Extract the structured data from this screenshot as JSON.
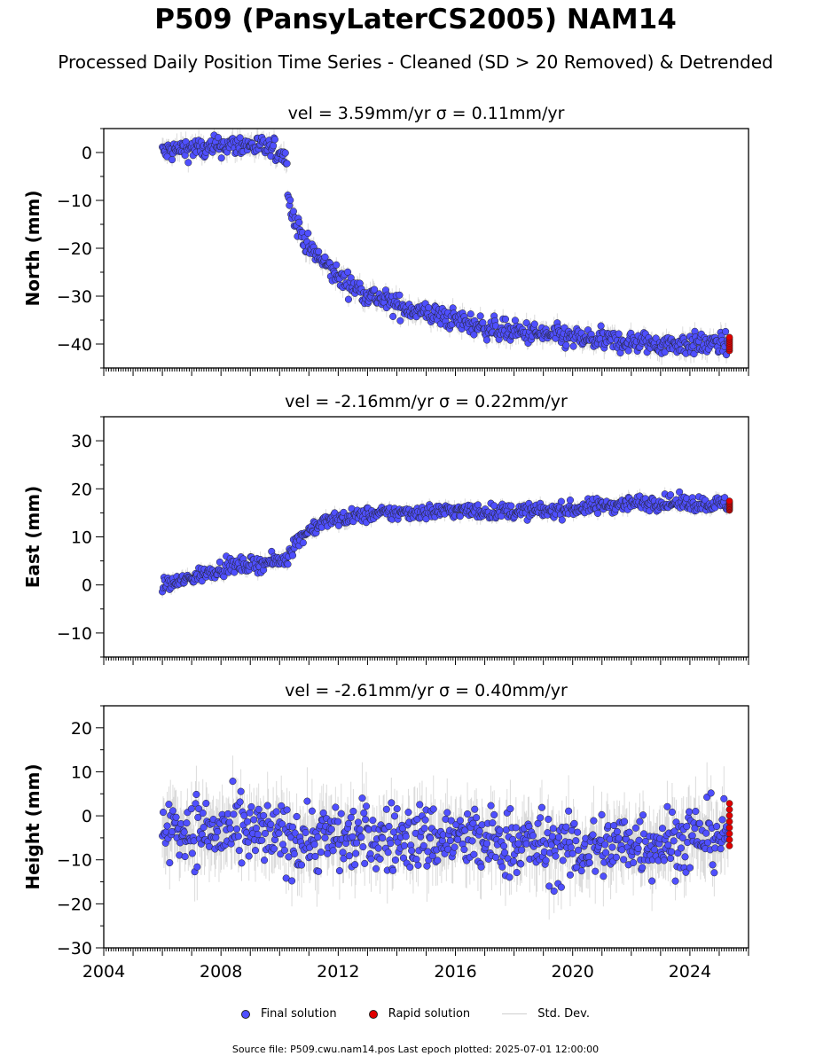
{
  "title": "P509 (PansyLaterCS2005) NAM14",
  "subtitle": "Processed Daily Position Time Series - Cleaned (SD > 20 Removed) & Detrended",
  "legend": {
    "final": "Final solution",
    "rapid": "Rapid solution",
    "std": "Std. Dev."
  },
  "source_text": "Source file: P509.cwu.nam14.pos  Last epoch plotted: 2025-07-01 12:00:00",
  "colors": {
    "final": "#4f4fff",
    "rapid": "#e00000",
    "std": "#9a9a9a"
  },
  "chart_data": [
    {
      "type": "scatter",
      "title": "vel = 3.59mm/yr   σ = 0.11mm/yr",
      "ylabel": "North (mm)",
      "xlim": [
        2004.0,
        2026.0
      ],
      "ylim": [
        -45,
        5
      ],
      "yticks": [
        0,
        -10,
        -20,
        -30,
        -40
      ],
      "xticks": [],
      "x": [
        2006.0,
        2006.5,
        2007.0,
        2007.5,
        2008.0,
        2008.5,
        2009.0,
        2009.5,
        2010.0,
        2010.2,
        2010.25,
        2010.3,
        2010.4,
        2010.5,
        2010.75,
        2011.0,
        2011.5,
        2012.0,
        2012.5,
        2013.0,
        2014.0,
        2015.0,
        2016.0,
        2017.0,
        2018.0,
        2019.0,
        2020.0,
        2021.0,
        2022.0,
        2023.0,
        2024.0,
        2025.0
      ],
      "y": [
        0,
        0.5,
        1,
        0.5,
        1.5,
        1.5,
        1.5,
        1,
        0,
        -0.5,
        -4,
        -8,
        -12,
        -14,
        -17,
        -20,
        -23,
        -26,
        -28,
        -29.5,
        -32,
        -33.5,
        -35,
        -36.5,
        -37.5,
        -38,
        -38.8,
        -39.3,
        -39.6,
        -40,
        -40,
        -40
      ],
      "rapid": {
        "x": [
          2025.35
        ],
        "y": [
          -40
        ]
      },
      "noise": 1.6
    },
    {
      "type": "scatter",
      "title": "vel = -2.16mm/yr   σ = 0.22mm/yr",
      "ylabel": "East (mm)",
      "xlim": [
        2004.0,
        2026.0
      ],
      "ylim": [
        -15,
        35
      ],
      "yticks": [
        30,
        20,
        10,
        0,
        -10
      ],
      "xticks": [],
      "x": [
        2006.0,
        2006.5,
        2007.0,
        2007.5,
        2008.0,
        2008.5,
        2009.0,
        2009.5,
        2010.0,
        2010.25,
        2010.35,
        2010.5,
        2010.75,
        2011.0,
        2011.5,
        2012.0,
        2012.5,
        2013.0,
        2014.0,
        2015.0,
        2016.0,
        2017.0,
        2018.0,
        2019.0,
        2020.0,
        2021.0,
        2022.0,
        2023.0,
        2024.0,
        2025.0
      ],
      "y": [
        0,
        0.5,
        1.5,
        2.5,
        3.5,
        4,
        4.2,
        4.6,
        5,
        5.5,
        7,
        8.5,
        10,
        11.5,
        13,
        13.8,
        14.2,
        14.6,
        15,
        15.2,
        15.5,
        15.3,
        15.3,
        15.4,
        15.8,
        16.5,
        17,
        17.2,
        17,
        16.8
      ],
      "rapid": {
        "x": [
          2025.35
        ],
        "y": [
          16.5
        ]
      },
      "noise": 1.1
    },
    {
      "type": "scatter",
      "title": "vel = -2.61mm/yr   σ = 0.40mm/yr",
      "ylabel": "Height (mm)",
      "xlim": [
        2004.0,
        2026.0
      ],
      "ylim": [
        -30,
        25
      ],
      "yticks": [
        20,
        10,
        0,
        -10,
        -20,
        -30
      ],
      "xticks": [
        2004,
        2008,
        2012,
        2016,
        2020,
        2024
      ],
      "x": [
        2006.0,
        2007.0,
        2008.0,
        2009.0,
        2010.0,
        2011.0,
        2012.0,
        2013.0,
        2014.0,
        2015.0,
        2016.0,
        2017.0,
        2018.0,
        2019.0,
        2020.0,
        2021.0,
        2022.0,
        2023.0,
        2024.0,
        2025.0
      ],
      "y": [
        -3,
        -3,
        -4,
        -4,
        -5,
        -5,
        -5,
        -5,
        -5,
        -5,
        -5,
        -6,
        -6,
        -7,
        -8,
        -7,
        -6,
        -6,
        -5,
        -4
      ],
      "rapid": {
        "x": [
          2025.35
        ],
        "y": [
          -2
        ]
      },
      "noise": 5.5
    }
  ]
}
